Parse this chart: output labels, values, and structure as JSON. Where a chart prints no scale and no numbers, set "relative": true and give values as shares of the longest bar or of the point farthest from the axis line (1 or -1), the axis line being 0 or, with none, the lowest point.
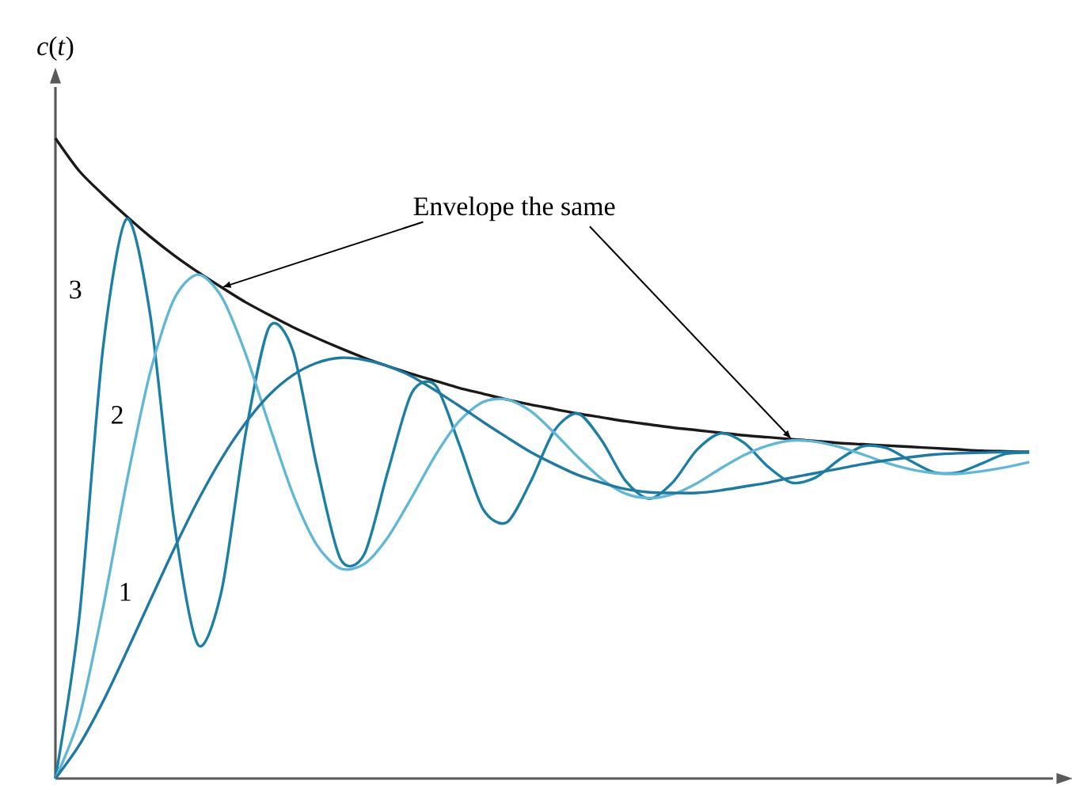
{
  "chart_data": {
    "type": "line",
    "relative": true,
    "ylabel": "*c*(*t*)",
    "annotations": [
      "Envelope the same"
    ],
    "categories": [
      null,
      null,
      null,
      null,
      null,
      null,
      null,
      null,
      null,
      null,
      null,
      null,
      null,
      null,
      null,
      null,
      null,
      null,
      null,
      null,
      null,
      null,
      null,
      null,
      null,
      null,
      null,
      null,
      null,
      null,
      null,
      null,
      null,
      null,
      null,
      null,
      null,
      null,
      null,
      null,
      null,
      null
    ],
    "series": [
      {
        "color": "#1a1a1a",
        "values": [
          1.0,
          0.949,
          0.912,
          0.878,
          0.846,
          0.817,
          0.791,
          0.767,
          0.744,
          0.724,
          0.705,
          0.688,
          0.672,
          0.657,
          0.644,
          0.632,
          0.621,
          0.61,
          0.601,
          0.592,
          0.584,
          0.577,
          0.57,
          0.564,
          0.558,
          0.553,
          0.548,
          0.544,
          0.54,
          0.536,
          0.533,
          0.53,
          0.527,
          0.524,
          0.522,
          0.52,
          0.518,
          0.516,
          0.514,
          0.512,
          0.511,
          0.51
        ]
      },
      {
        "name": "3",
        "color": "#1b7fa6",
        "values": [
          0,
          0.25,
          0.671,
          0.874,
          0.722,
          0.4,
          0.209,
          0.294,
          0.537,
          0.705,
          0.668,
          0.489,
          0.343,
          0.35,
          0.48,
          0.602,
          0.614,
          0.522,
          0.421,
          0.4,
          0.463,
          0.543,
          0.57,
          0.528,
          0.465,
          0.437,
          0.463,
          0.513,
          0.539,
          0.524,
          0.487,
          0.462,
          0.47,
          0.498,
          0.519,
          0.516,
          0.496,
          0.478,
          0.478,
          0.492,
          0.507,
          0.509
        ]
      },
      {
        "name": "2",
        "color": "#62b6d6",
        "values": [
          0,
          0.095,
          0.266,
          0.463,
          0.636,
          0.749,
          0.787,
          0.752,
          0.664,
          0.552,
          0.444,
          0.365,
          0.328,
          0.335,
          0.377,
          0.439,
          0.505,
          0.558,
          0.588,
          0.592,
          0.574,
          0.54,
          0.502,
          0.468,
          0.445,
          0.438,
          0.444,
          0.461,
          0.484,
          0.505,
          0.52,
          0.528,
          0.526,
          0.518,
          0.506,
          0.493,
          0.483,
          0.477,
          0.476,
          0.48,
          0.486,
          0.494
        ]
      },
      {
        "name": "1",
        "color": "#1f79a3",
        "values": [
          0,
          0.052,
          0.12,
          0.198,
          0.279,
          0.359,
          0.434,
          0.5,
          0.555,
          0.599,
          0.63,
          0.649,
          0.657,
          0.654,
          0.644,
          0.628,
          0.606,
          0.582,
          0.557,
          0.533,
          0.51,
          0.491,
          0.474,
          0.462,
          0.452,
          0.447,
          0.446,
          0.446,
          0.45,
          0.456,
          0.462,
          0.47,
          0.477,
          0.484,
          0.491,
          0.497,
          0.502,
          0.506,
          0.508,
          0.509,
          0.51,
          0.51
        ]
      }
    ]
  }
}
